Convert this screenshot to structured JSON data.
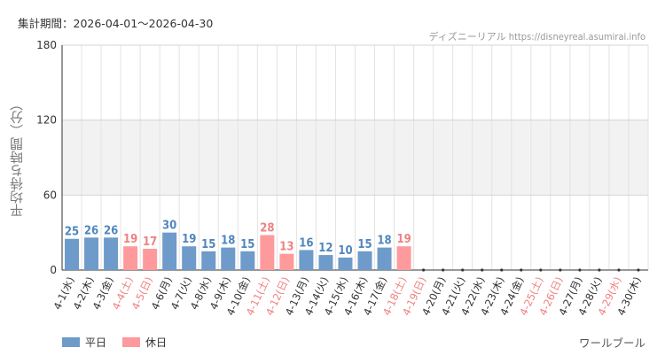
{
  "period_text": "集計期間：2026-04-01～2026-04-30",
  "source_text": "ディズニーリアル https://disneyreal.asumirai.info",
  "attraction_name": "ワールブール",
  "colors": {
    "weekday": "#6e9bc9",
    "holiday": "#fe9a9c",
    "weekday_label": "#4f86bd",
    "holiday_label": "#f08080",
    "band": "#f2f2f2",
    "grid": "#e3e3e3"
  },
  "chart_data": {
    "type": "bar",
    "ylabel": "平均待ち時間（分）",
    "ylim": [
      0,
      180
    ],
    "yticks": [
      0,
      60,
      120,
      180
    ],
    "grid": true,
    "legend_position": "bottom-left",
    "legend": [
      {
        "name": "平日",
        "kind": "weekday"
      },
      {
        "name": "休日",
        "kind": "holiday"
      }
    ],
    "categories": [
      "4-1(水)",
      "4-2(木)",
      "4-3(金)",
      "4-4(土)",
      "4-5(日)",
      "4-6(月)",
      "4-7(火)",
      "4-8(水)",
      "4-9(木)",
      "4-10(金)",
      "4-11(土)",
      "4-12(日)",
      "4-13(月)",
      "4-14(火)",
      "4-15(水)",
      "4-16(木)",
      "4-17(金)",
      "4-18(土)",
      "4-19(日)",
      "4-20(月)",
      "4-21(火)",
      "4-22(水)",
      "4-23(木)",
      "4-24(金)",
      "4-25(土)",
      "4-26(日)",
      "4-27(月)",
      "4-28(火)",
      "4-29(水)",
      "4-30(木)"
    ],
    "day_type": [
      "weekday",
      "weekday",
      "weekday",
      "holiday",
      "holiday",
      "weekday",
      "weekday",
      "weekday",
      "weekday",
      "weekday",
      "holiday",
      "holiday",
      "weekday",
      "weekday",
      "weekday",
      "weekday",
      "weekday",
      "holiday",
      "holiday",
      "weekday",
      "weekday",
      "weekday",
      "weekday",
      "weekday",
      "holiday",
      "holiday",
      "weekday",
      "weekday",
      "holiday",
      "weekday"
    ],
    "values": [
      25,
      26,
      26,
      19,
      17,
      30,
      19,
      15,
      18,
      15,
      28,
      13,
      16,
      12,
      10,
      15,
      18,
      19,
      null,
      null,
      null,
      null,
      null,
      null,
      null,
      null,
      null,
      null,
      null,
      null
    ]
  }
}
